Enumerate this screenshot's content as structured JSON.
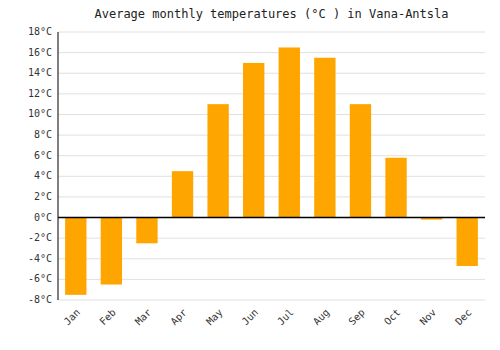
{
  "chart_data": {
    "type": "bar",
    "title": "Average monthly temperatures (°C ) in Vana-Antsla",
    "categories": [
      "Jan",
      "Feb",
      "Mar",
      "Apr",
      "May",
      "Jun",
      "Jul",
      "Aug",
      "Sep",
      "Oct",
      "Nov",
      "Dec"
    ],
    "values": [
      -7.5,
      -6.5,
      -2.5,
      4.5,
      11.0,
      15.0,
      16.5,
      15.5,
      11.0,
      5.8,
      -0.2,
      -4.7
    ],
    "color": "#FFA500",
    "ylim": [
      -8,
      18
    ],
    "yticks": [
      {
        "value": -8,
        "label": "-8°C"
      },
      {
        "value": -6,
        "label": "-6°C"
      },
      {
        "value": -4,
        "label": "-4°C"
      },
      {
        "value": -2,
        "label": "-2°C"
      },
      {
        "value": 0,
        "label": "0°C"
      },
      {
        "value": 2,
        "label": "2°C"
      },
      {
        "value": 4,
        "label": "4°C"
      },
      {
        "value": 6,
        "label": "6°C"
      },
      {
        "value": 8,
        "label": "8°C"
      },
      {
        "value": 10,
        "label": "10°C"
      },
      {
        "value": 12,
        "label": "12°C"
      },
      {
        "value": 14,
        "label": "14°C"
      },
      {
        "value": 16,
        "label": "16°C"
      },
      {
        "value": 18,
        "label": "18°C"
      }
    ],
    "grid": true
  }
}
